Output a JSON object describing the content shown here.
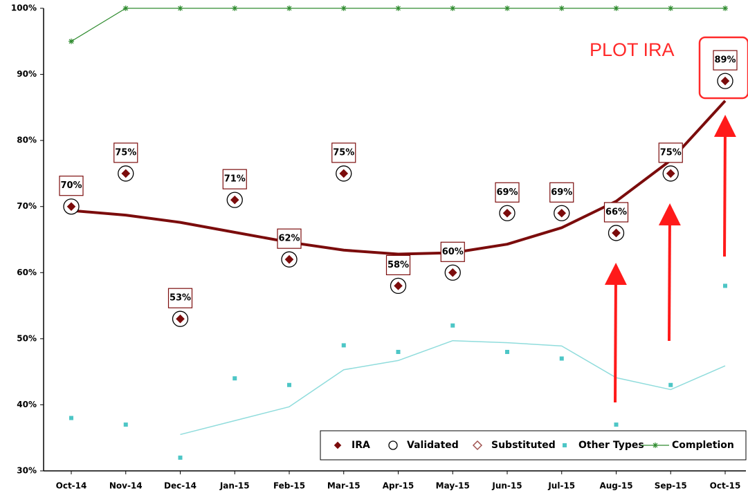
{
  "chart_data": {
    "type": "line",
    "categories": [
      "Oct-14",
      "Nov-14",
      "Dec-14",
      "Jan-15",
      "Feb-15",
      "Mar-15",
      "Apr-15",
      "May-15",
      "Jun-15",
      "Jul-15",
      "Aug-15",
      "Sep-15",
      "Oct-15"
    ],
    "ylim": [
      30,
      100
    ],
    "yticks": [
      {
        "value": 30,
        "label": "30%"
      },
      {
        "value": 40,
        "label": "40%"
      },
      {
        "value": 50,
        "label": "50%"
      },
      {
        "value": 60,
        "label": "60%"
      },
      {
        "value": 70,
        "label": "70%"
      },
      {
        "value": 80,
        "label": "80%"
      },
      {
        "value": 90,
        "label": "90%"
      },
      {
        "value": 100,
        "label": "100%"
      }
    ],
    "grid": false,
    "legend": "bottom-right",
    "annotation": "PLOT IRA",
    "series": [
      {
        "name": "IRA",
        "color": "#7b0c0c",
        "marker": "diamond",
        "values": [
          70,
          75,
          53,
          71,
          62,
          75,
          58,
          60,
          69,
          69,
          66,
          75,
          89
        ],
        "value_labels": [
          "70%",
          "75%",
          "53%",
          "71%",
          "62%",
          "75%",
          "58%",
          "60%",
          "69%",
          "69%",
          "66%",
          "75%",
          "89%"
        ],
        "trend": [
          69.4,
          68.7,
          67.6,
          66.1,
          64.6,
          63.4,
          62.8,
          63.0,
          64.3,
          66.8,
          70.8,
          77.0,
          86.0
        ],
        "trend_color": "#7b0c0c"
      },
      {
        "name": "Validated",
        "color": "#000000",
        "marker": "circle",
        "values": [
          70,
          75,
          53,
          71,
          62,
          75,
          58,
          60,
          69,
          69,
          66,
          75,
          89
        ]
      },
      {
        "name": "Substituted",
        "color": "#a0524f",
        "marker": "diamond-open",
        "values": [
          null,
          null,
          null,
          null,
          null,
          null,
          null,
          null,
          null,
          null,
          null,
          null,
          null
        ]
      },
      {
        "name": "Other Types",
        "color": "#4dc6c6",
        "marker": "square",
        "values": [
          38,
          37,
          32,
          44,
          43,
          49,
          48,
          52,
          48,
          47,
          37,
          43,
          58
        ],
        "trend": [
          null,
          null,
          35.5,
          37.6,
          39.7,
          45.3,
          46.7,
          49.7,
          49.4,
          48.9,
          44.1,
          42.3,
          45.9
        ],
        "trend_color": "#8fdcdc"
      },
      {
        "name": "Completion",
        "color": "#2e8b2e",
        "marker": "star",
        "values": [
          95,
          100,
          100,
          100,
          100,
          100,
          100,
          100,
          100,
          100,
          100,
          100,
          100
        ]
      }
    ]
  }
}
